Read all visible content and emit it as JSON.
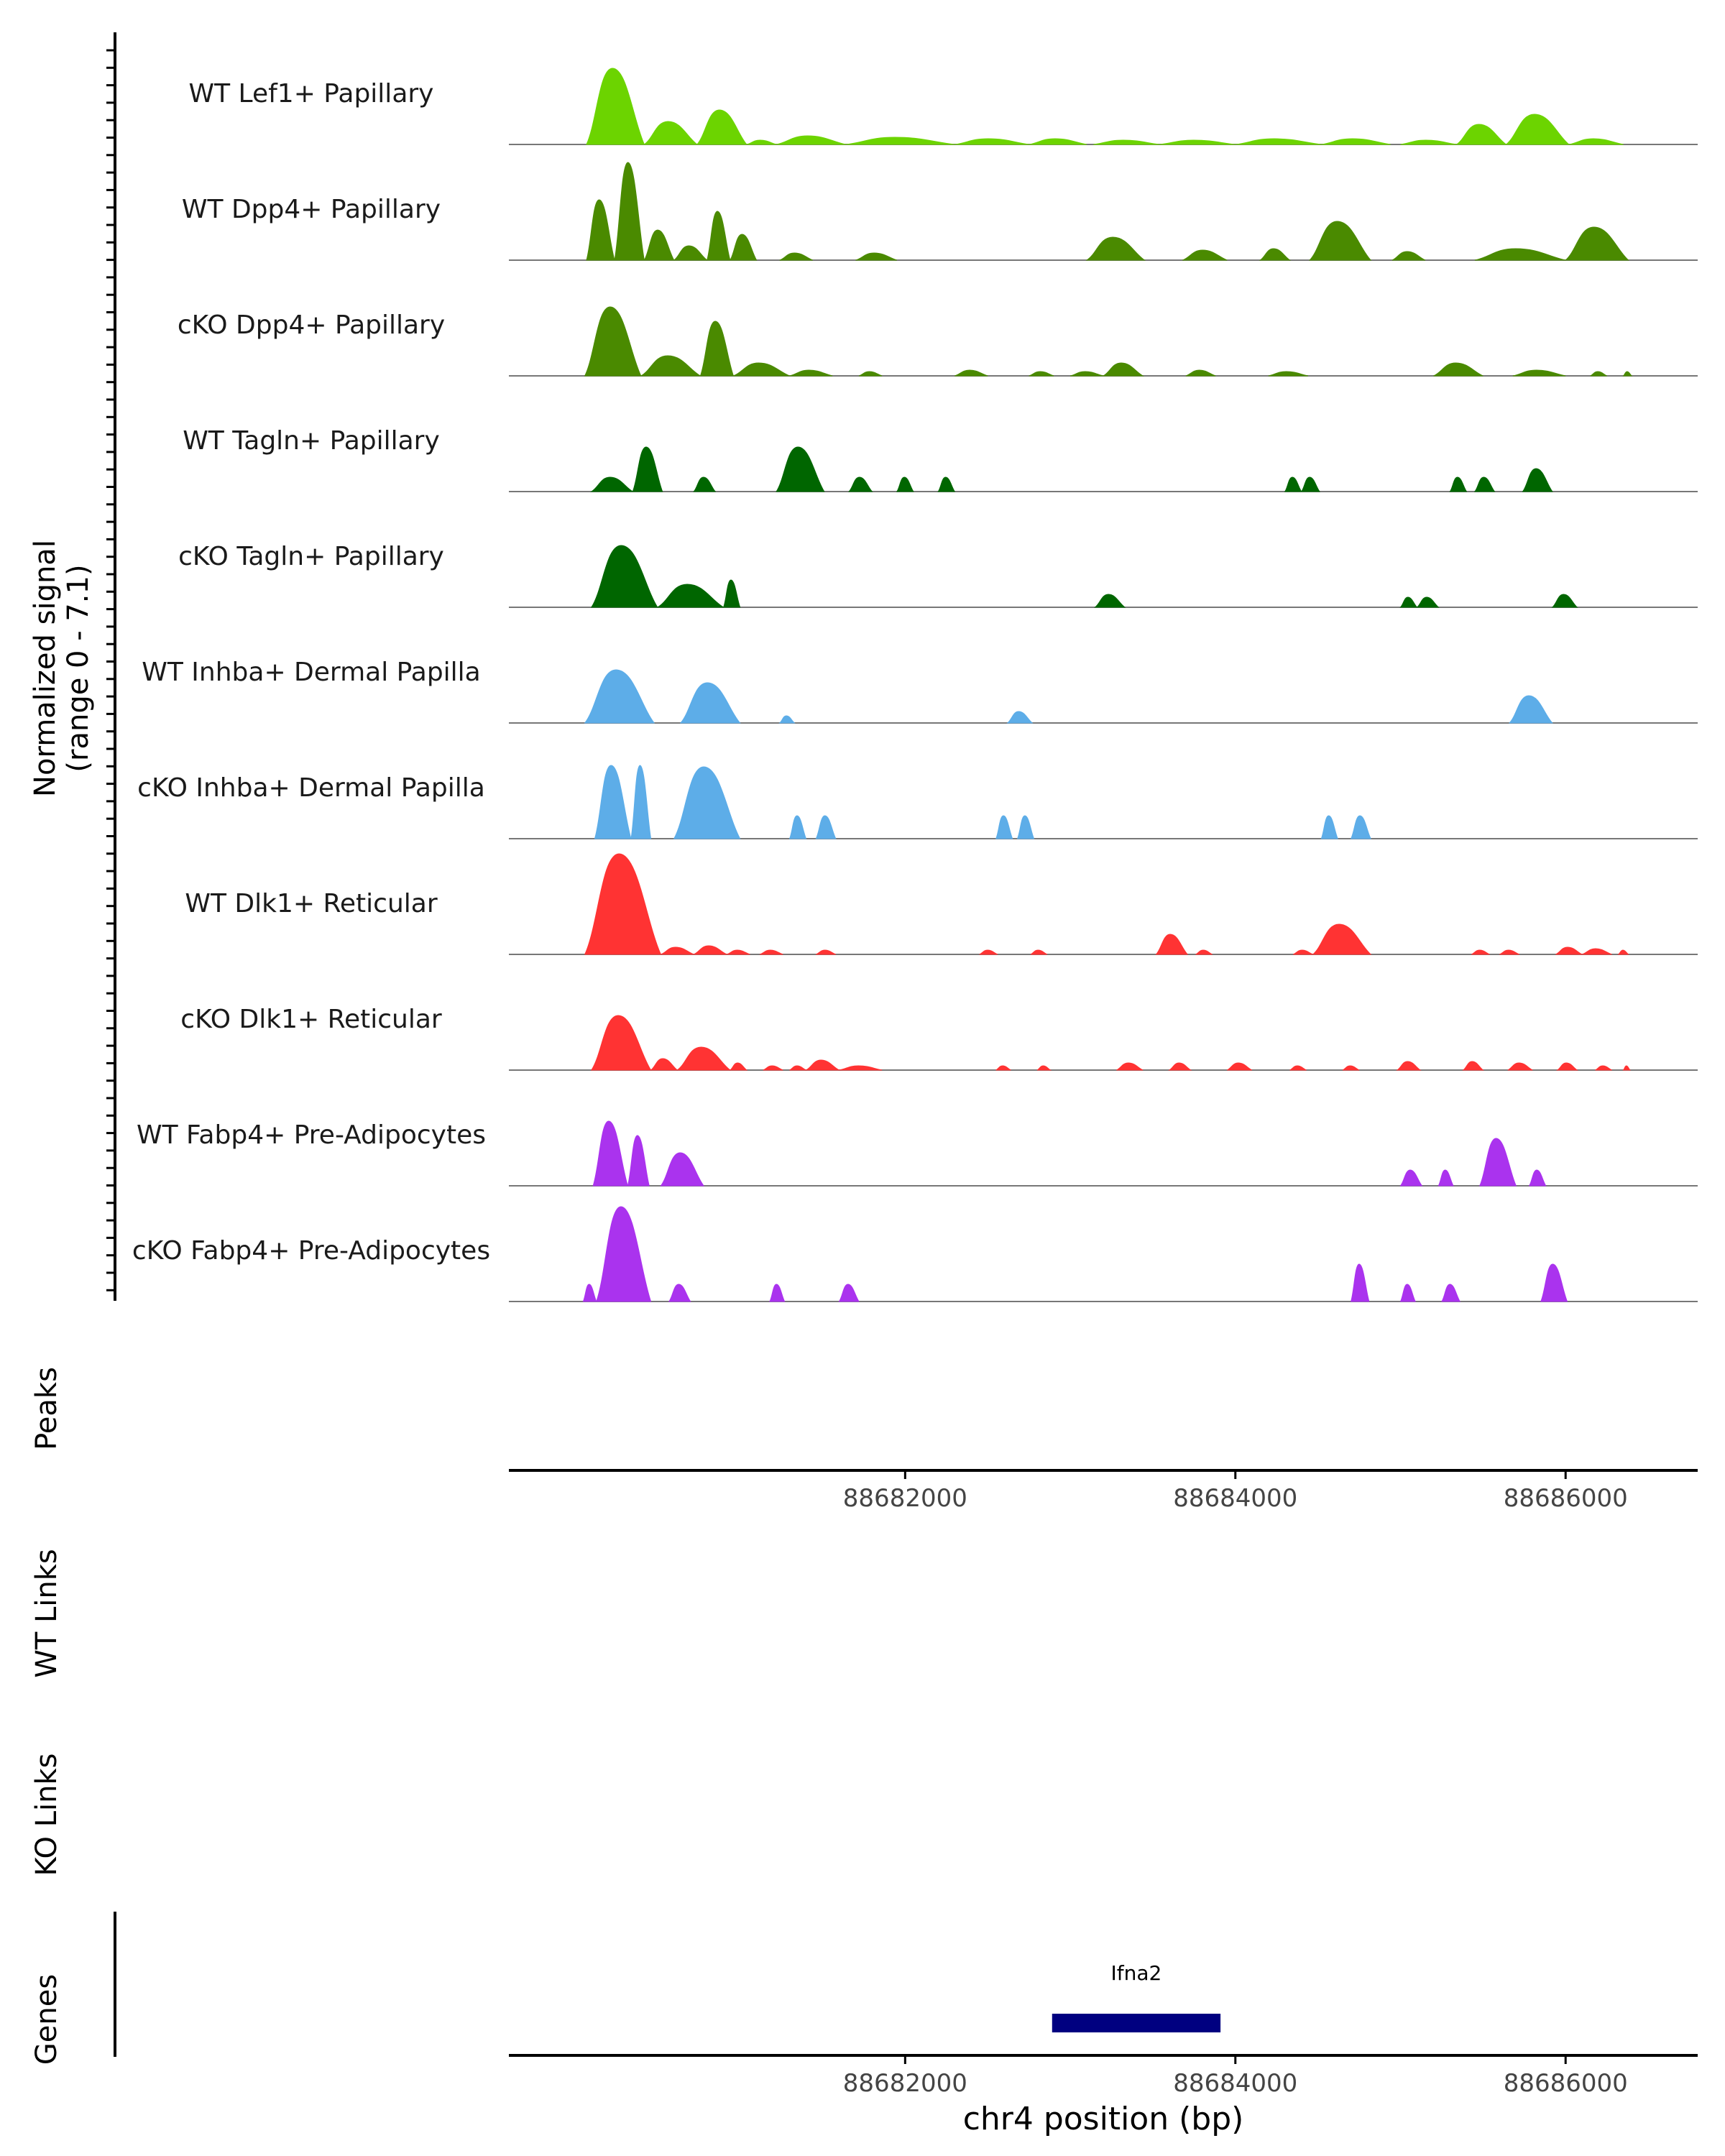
{
  "chart_data": {
    "type": "area",
    "title": "",
    "region": "chr4",
    "xlabel": "chr4 position (bp)",
    "xlim": [
      88679600,
      88686800
    ],
    "x_ticks": [
      88682000,
      88684000,
      88686000
    ],
    "x_tick_labels": [
      "88682000",
      "88684000",
      "88686000"
    ],
    "coverage_ylabel": "Normalized signal",
    "coverage_range_label": "(range 0 - 7.1)",
    "ylim": [
      0,
      7.1
    ],
    "track_labels": {
      "peaks": "Peaks",
      "wt_links": "WT Links",
      "ko_links": "KO Links",
      "genes": "Genes"
    },
    "series": [
      {
        "name": "WT Lef1+ Papillary",
        "color": "#6CD400",
        "peaks": [
          [
            88680070,
            88680420,
            5.3
          ],
          [
            88680420,
            88680740,
            1.6
          ],
          [
            88680740,
            88681040,
            2.4
          ],
          [
            88681040,
            88681220,
            0.3
          ],
          [
            88681220,
            88681640,
            0.6
          ],
          [
            88681640,
            88682300,
            0.5
          ],
          [
            88682300,
            88682750,
            0.4
          ],
          [
            88682750,
            88683100,
            0.4
          ],
          [
            88683140,
            88683540,
            0.3
          ],
          [
            88683540,
            88684000,
            0.3
          ],
          [
            88684000,
            88684520,
            0.4
          ],
          [
            88684520,
            88684940,
            0.4
          ],
          [
            88685000,
            88685340,
            0.3
          ],
          [
            88685340,
            88685640,
            1.4
          ],
          [
            88685640,
            88686020,
            2.1
          ],
          [
            88686020,
            88686350,
            0.4
          ]
        ]
      },
      {
        "name": "WT Dpp4+ Papillary",
        "color": "#4A8A00",
        "peaks": [
          [
            88680070,
            88680240,
            4.2
          ],
          [
            88680240,
            88680420,
            6.8
          ],
          [
            88680420,
            88680600,
            2.1
          ],
          [
            88680600,
            88680800,
            1.0
          ],
          [
            88680800,
            88680940,
            3.4
          ],
          [
            88680940,
            88681100,
            1.8
          ],
          [
            88681240,
            88681440,
            0.5
          ],
          [
            88681700,
            88681950,
            0.5
          ],
          [
            88683100,
            88683450,
            1.6
          ],
          [
            88683680,
            88683950,
            0.7
          ],
          [
            88684150,
            88684330,
            0.8
          ],
          [
            88684450,
            88684820,
            2.7
          ],
          [
            88684950,
            88685150,
            0.6
          ],
          [
            88685450,
            88686000,
            0.8
          ],
          [
            88686000,
            88686380,
            2.3
          ]
        ]
      },
      {
        "name": "cKO Dpp4+ Papillary",
        "color": "#4A8A00",
        "peaks": [
          [
            88680060,
            88680400,
            4.8
          ],
          [
            88680400,
            88680760,
            1.4
          ],
          [
            88680760,
            88680960,
            3.8
          ],
          [
            88680960,
            88681300,
            0.9
          ],
          [
            88681300,
            88681560,
            0.4
          ],
          [
            88681720,
            88681860,
            0.3
          ],
          [
            88682300,
            88682500,
            0.4
          ],
          [
            88682750,
            88682900,
            0.3
          ],
          [
            88683000,
            88683200,
            0.3
          ],
          [
            88683200,
            88683440,
            0.9
          ],
          [
            88683700,
            88683880,
            0.4
          ],
          [
            88684200,
            88684440,
            0.3
          ],
          [
            88685200,
            88685500,
            0.9
          ],
          [
            88685680,
            88686000,
            0.4
          ],
          [
            88686150,
            88686250,
            0.3
          ],
          [
            88686350,
            88686400,
            0.3
          ]
        ]
      },
      {
        "name": "WT Tagln+ Papillary",
        "color": "#006600",
        "peaks": [
          [
            88680100,
            88680350,
            1.0
          ],
          [
            88680350,
            88680530,
            3.1
          ],
          [
            88680720,
            88680850,
            1.0
          ],
          [
            88681220,
            88681510,
            3.1
          ],
          [
            88681660,
            88681800,
            1.0
          ],
          [
            88681950,
            88682050,
            1.0
          ],
          [
            88682200,
            88682300,
            1.0
          ],
          [
            88684300,
            88684400,
            1.0
          ],
          [
            88684400,
            88684510,
            1.0
          ],
          [
            88685300,
            88685400,
            1.0
          ],
          [
            88685450,
            88685570,
            1.0
          ],
          [
            88685740,
            88685920,
            1.6
          ]
        ]
      },
      {
        "name": "cKO Tagln+ Papillary",
        "color": "#006600",
        "peaks": [
          [
            88680100,
            88680500,
            4.3
          ],
          [
            88680500,
            88680900,
            1.6
          ],
          [
            88680900,
            88681000,
            1.9
          ],
          [
            88683150,
            88683330,
            0.9
          ],
          [
            88685000,
            88685100,
            0.7
          ],
          [
            88685100,
            88685230,
            0.7
          ],
          [
            88685920,
            88686070,
            0.9
          ]
        ]
      },
      {
        "name": "WT Inhba+ Dermal Papilla",
        "color": "#5DADE8",
        "peaks": [
          [
            88680060,
            88680480,
            3.7
          ],
          [
            88680640,
            88681000,
            2.8
          ],
          [
            88681240,
            88681330,
            0.5
          ],
          [
            88682620,
            88682770,
            0.8
          ],
          [
            88685660,
            88685920,
            1.9
          ]
        ]
      },
      {
        "name": "cKO Inhba+ Dermal Papilla",
        "color": "#5DADE8",
        "peaks": [
          [
            88680120,
            88680340,
            5.1
          ],
          [
            88680340,
            88680460,
            5.1
          ],
          [
            88680600,
            88681000,
            5.0
          ],
          [
            88681300,
            88681400,
            1.6
          ],
          [
            88681460,
            88681580,
            1.6
          ],
          [
            88682550,
            88682650,
            1.6
          ],
          [
            88682680,
            88682780,
            1.6
          ],
          [
            88684520,
            88684620,
            1.6
          ],
          [
            88684700,
            88684820,
            1.6
          ]
        ]
      },
      {
        "name": "WT Dlk1+ Reticular",
        "color": "#FF3333",
        "peaks": [
          [
            88680060,
            88680520,
            7.0
          ],
          [
            88680520,
            88680720,
            0.5
          ],
          [
            88680720,
            88680920,
            0.6
          ],
          [
            88680920,
            88681060,
            0.3
          ],
          [
            88681120,
            88681260,
            0.3
          ],
          [
            88681460,
            88681580,
            0.3
          ],
          [
            88682450,
            88682560,
            0.3
          ],
          [
            88682760,
            88682860,
            0.3
          ],
          [
            88683520,
            88683710,
            1.4
          ],
          [
            88683760,
            88683860,
            0.3
          ],
          [
            88684350,
            88684470,
            0.3
          ],
          [
            88684470,
            88684820,
            2.1
          ],
          [
            88685430,
            88685540,
            0.3
          ],
          [
            88685600,
            88685720,
            0.3
          ],
          [
            88685940,
            88686100,
            0.5
          ],
          [
            88686100,
            88686280,
            0.4
          ],
          [
            88686320,
            88686380,
            0.3
          ]
        ]
      },
      {
        "name": "cKO Dlk1+ Reticular",
        "color": "#FF3333",
        "peaks": [
          [
            88680100,
            88680460,
            3.8
          ],
          [
            88680460,
            88680620,
            0.8
          ],
          [
            88680620,
            88680940,
            1.6
          ],
          [
            88680940,
            88681040,
            0.5
          ],
          [
            88681140,
            88681260,
            0.3
          ],
          [
            88681300,
            88681400,
            0.3
          ],
          [
            88681400,
            88681600,
            0.7
          ],
          [
            88681600,
            88681860,
            0.3
          ],
          [
            88682550,
            88682640,
            0.3
          ],
          [
            88682800,
            88682880,
            0.3
          ],
          [
            88683280,
            88683440,
            0.5
          ],
          [
            88683600,
            88683730,
            0.5
          ],
          [
            88683950,
            88684100,
            0.5
          ],
          [
            88684330,
            88684430,
            0.3
          ],
          [
            88684650,
            88684750,
            0.3
          ],
          [
            88684980,
            88685120,
            0.6
          ],
          [
            88685380,
            88685500,
            0.6
          ],
          [
            88685650,
            88685800,
            0.5
          ],
          [
            88685950,
            88686070,
            0.5
          ],
          [
            88686180,
            88686280,
            0.3
          ],
          [
            88686350,
            88686390,
            0.3
          ]
        ]
      },
      {
        "name": "WT Fabp4+ Pre-Adipocytes",
        "color": "#AA33EE",
        "peaks": [
          [
            88680110,
            88680320,
            4.5
          ],
          [
            88680320,
            88680450,
            3.5
          ],
          [
            88680520,
            88680780,
            2.3
          ],
          [
            88685000,
            88685130,
            1.1
          ],
          [
            88685230,
            88685320,
            1.1
          ],
          [
            88685480,
            88685700,
            3.3
          ],
          [
            88685780,
            88685880,
            1.1
          ]
        ]
      },
      {
        "name": "cKO Fabp4+ Pre-Adipocytes",
        "color": "#AA33EE",
        "peaks": [
          [
            88680050,
            88680130,
            1.2
          ],
          [
            88680130,
            88680460,
            6.6
          ],
          [
            88680570,
            88680700,
            1.2
          ],
          [
            88681180,
            88681270,
            1.2
          ],
          [
            88681600,
            88681720,
            1.2
          ],
          [
            88684700,
            88684810,
            2.6
          ],
          [
            88685000,
            88685090,
            1.2
          ],
          [
            88685250,
            88685360,
            1.2
          ],
          [
            88685850,
            88686010,
            2.6
          ]
        ]
      }
    ],
    "genes": [
      {
        "name": "Ifna2",
        "start": 88682890,
        "end": 88683910,
        "color": "#000080"
      }
    ]
  }
}
